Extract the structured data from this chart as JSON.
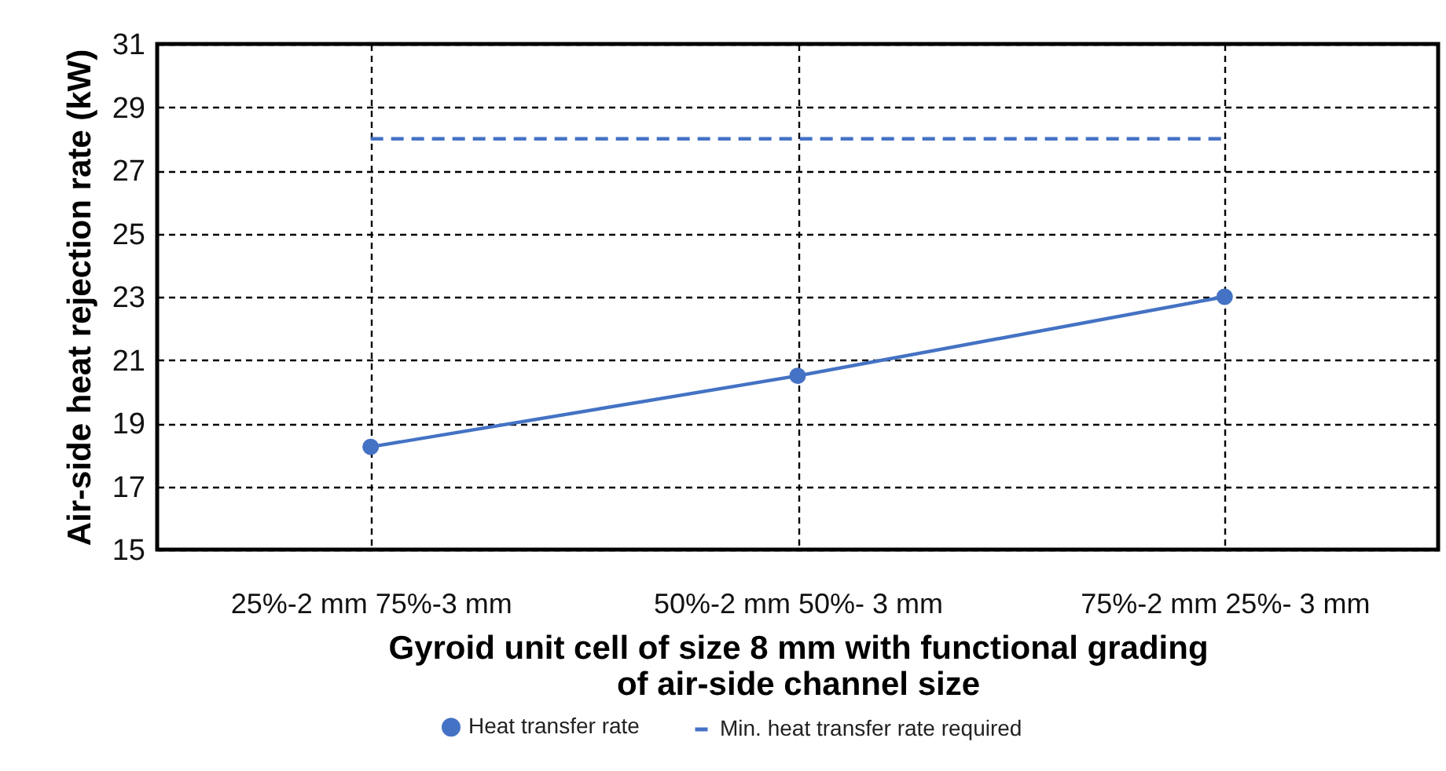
{
  "chart_data": {
    "type": "line",
    "xlabel": "Gyroid unit cell of size 8 mm with functional grading\nof air-side channel size",
    "ylabel": "Air-side heat rejection rate (kW)",
    "categories": [
      "25%-2 mm 75%-3 mm",
      "50%-2 mm 50%- 3 mm",
      "75%-2 mm 25%- 3 mm"
    ],
    "series": [
      {
        "name": "Heat transfer rate",
        "color": "#4472c4",
        "values": [
          18.25,
          20.5,
          23
        ],
        "marker": "circle",
        "line_style": "solid"
      },
      {
        "name": "Min. heat transfer rate required",
        "color": "#4472c4",
        "values": [
          28,
          28,
          28
        ],
        "marker": "none",
        "line_style": "dashed"
      }
    ],
    "ylim": [
      15,
      31
    ],
    "yticks": [
      15,
      17,
      19,
      21,
      23,
      25,
      27,
      29,
      31
    ],
    "grid": true,
    "legend": "bottom"
  }
}
